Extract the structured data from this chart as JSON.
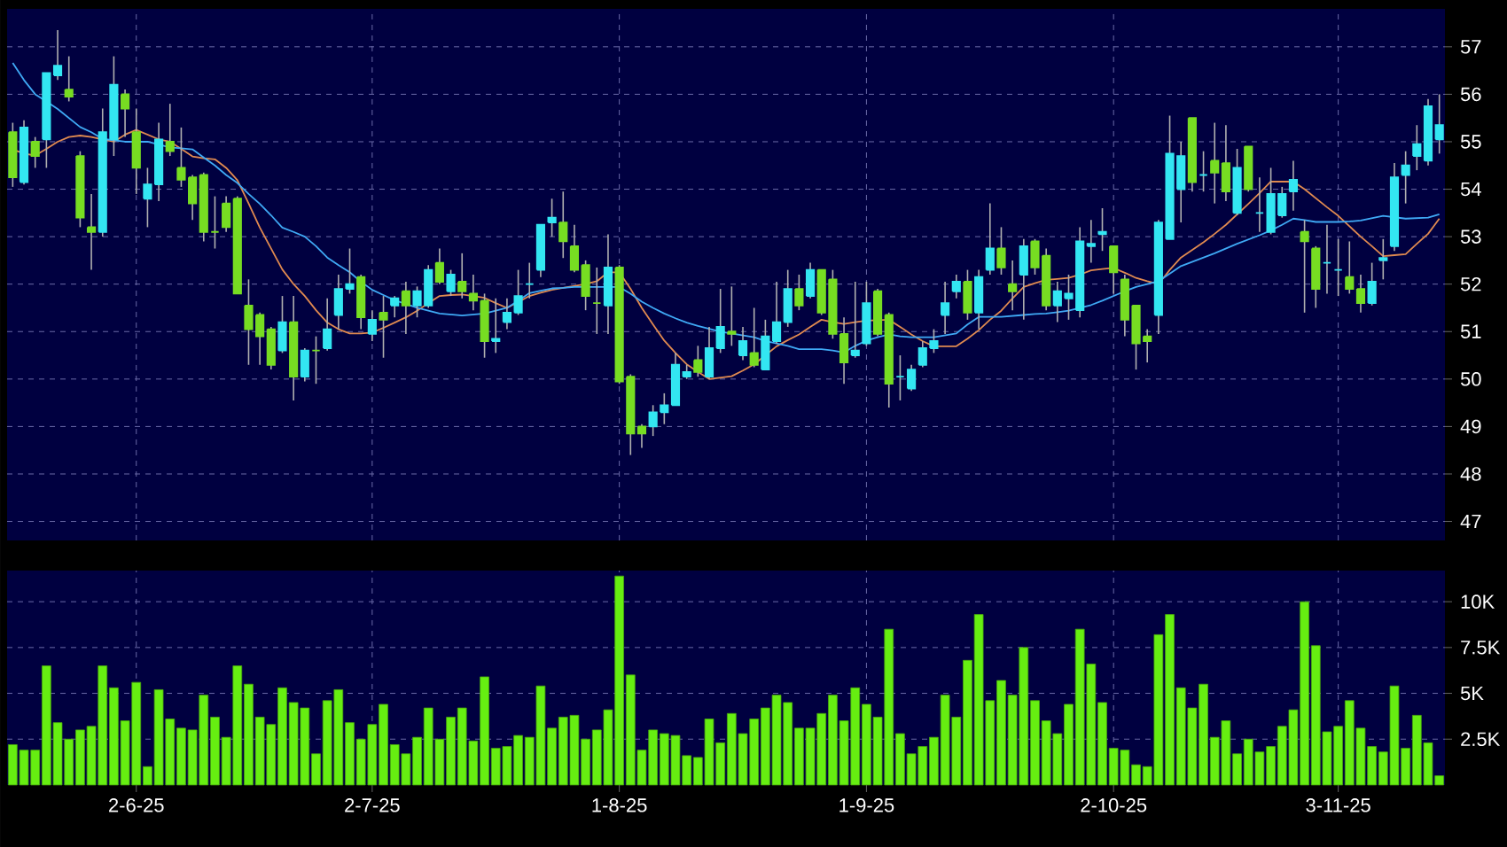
{
  "chart_data": [
    {
      "type": "candlestick",
      "categories": [
        null,
        null,
        null,
        null,
        null,
        null,
        null,
        null,
        null,
        null,
        null,
        null,
        null,
        null,
        null,
        null,
        null,
        null,
        null,
        null,
        null,
        null,
        null,
        null,
        null,
        null,
        null,
        null,
        null,
        null,
        null,
        null,
        null,
        null,
        null,
        null,
        null,
        null,
        null,
        null,
        null,
        null,
        null,
        null,
        null,
        null,
        null,
        null,
        null,
        null,
        null,
        null,
        null,
        null,
        null,
        null,
        null,
        null,
        null,
        null,
        null,
        null,
        null,
        null,
        null,
        null,
        null,
        null,
        null,
        null,
        null,
        null,
        null,
        null,
        null,
        null,
        null,
        null,
        null,
        null,
        null,
        null,
        null,
        null,
        null,
        null,
        null,
        null,
        null,
        null,
        null,
        null,
        null,
        null,
        null,
        null,
        null,
        null,
        null,
        null,
        null,
        null,
        null,
        null,
        null,
        null,
        null,
        null,
        null,
        null,
        null,
        null,
        null,
        null,
        null,
        null,
        null,
        null,
        null,
        null,
        null,
        null,
        null,
        null,
        null,
        null,
        null,
        null
      ],
      "ohlc": [
        [
          55.2,
          55.4,
          54.05,
          54.25
        ],
        [
          54.15,
          55.45,
          54.1,
          55.3
        ],
        [
          55.0,
          55.1,
          54.45,
          54.7
        ],
        [
          55.05,
          56.45,
          54.45,
          56.45
        ],
        [
          56.4,
          57.35,
          56.3,
          56.6
        ],
        [
          56.1,
          56.8,
          55.85,
          55.95
        ],
        [
          54.7,
          54.8,
          53.2,
          53.4
        ],
        [
          53.2,
          53.9,
          52.3,
          53.1
        ],
        [
          53.1,
          55.7,
          53.0,
          55.2
        ],
        [
          55.05,
          56.8,
          54.7,
          56.2
        ],
        [
          56.0,
          56.1,
          55.1,
          55.7
        ],
        [
          55.2,
          55.7,
          53.9,
          54.45
        ],
        [
          53.8,
          54.45,
          53.2,
          54.1
        ],
        [
          54.1,
          55.4,
          53.75,
          55.05
        ],
        [
          55.0,
          55.8,
          54.7,
          54.8
        ],
        [
          54.45,
          55.3,
          54.05,
          54.2
        ],
        [
          54.25,
          54.3,
          53.35,
          53.7
        ],
        [
          54.3,
          54.35,
          52.9,
          53.1
        ],
        [
          53.1,
          53.85,
          52.75,
          53.1
        ],
        [
          53.7,
          53.85,
          53.1,
          53.2
        ],
        [
          53.8,
          53.85,
          51.8,
          51.8
        ],
        [
          51.55,
          52.1,
          50.3,
          51.05
        ],
        [
          51.35,
          51.4,
          50.3,
          50.9
        ],
        [
          51.05,
          51.1,
          50.2,
          50.3
        ],
        [
          50.6,
          51.75,
          50.55,
          51.2
        ],
        [
          51.2,
          51.75,
          49.55,
          50.05
        ],
        [
          50.05,
          50.65,
          49.95,
          50.6
        ],
        [
          50.6,
          50.9,
          49.9,
          50.6
        ],
        [
          50.65,
          51.7,
          50.6,
          51.05
        ],
        [
          51.35,
          52.2,
          51.05,
          51.9
        ],
        [
          51.9,
          52.75,
          51.8,
          52.0
        ],
        [
          52.15,
          52.2,
          51.05,
          51.3
        ],
        [
          50.95,
          51.45,
          50.8,
          51.25
        ],
        [
          51.4,
          51.75,
          50.45,
          51.25
        ],
        [
          51.55,
          51.75,
          51.3,
          51.7
        ],
        [
          51.85,
          52.05,
          50.95,
          51.55
        ],
        [
          51.55,
          51.95,
          51.3,
          51.85
        ],
        [
          51.55,
          52.4,
          51.5,
          52.3
        ],
        [
          52.45,
          52.75,
          52.0,
          52.05
        ],
        [
          51.85,
          52.3,
          51.75,
          52.2
        ],
        [
          52.05,
          52.65,
          51.7,
          51.85
        ],
        [
          51.8,
          52.2,
          51.45,
          51.65
        ],
        [
          51.65,
          51.8,
          50.45,
          50.8
        ],
        [
          50.8,
          51.7,
          50.55,
          50.85
        ],
        [
          51.2,
          51.7,
          51.05,
          51.4
        ],
        [
          51.4,
          52.3,
          51.35,
          51.75
        ],
        [
          52.0,
          52.45,
          51.7,
          52.0
        ],
        [
          52.3,
          53.25,
          52.15,
          53.25
        ],
        [
          53.3,
          53.8,
          53.0,
          53.4
        ],
        [
          53.3,
          53.95,
          52.55,
          52.9
        ],
        [
          52.8,
          53.25,
          52.25,
          52.3
        ],
        [
          52.4,
          52.5,
          51.45,
          51.75
        ],
        [
          51.6,
          52.35,
          50.95,
          51.6
        ],
        [
          51.55,
          53.05,
          50.95,
          52.35
        ],
        [
          52.35,
          52.4,
          49.9,
          49.95
        ],
        [
          50.05,
          50.1,
          48.4,
          48.85
        ],
        [
          49.0,
          49.05,
          48.55,
          48.85
        ],
        [
          49.0,
          49.45,
          48.8,
          49.3
        ],
        [
          49.3,
          49.7,
          49.05,
          49.45
        ],
        [
          49.45,
          50.55,
          49.45,
          50.3
        ],
        [
          50.05,
          50.3,
          50.0,
          50.15
        ],
        [
          50.4,
          50.7,
          50.05,
          50.15
        ],
        [
          50.05,
          51.1,
          50.0,
          50.65
        ],
        [
          50.65,
          51.9,
          50.55,
          51.1
        ],
        [
          51.0,
          51.95,
          50.7,
          50.95
        ],
        [
          50.5,
          51.1,
          50.4,
          50.8
        ],
        [
          50.55,
          51.5,
          50.25,
          50.3
        ],
        [
          50.2,
          51.25,
          50.2,
          50.9
        ],
        [
          50.8,
          52.05,
          50.75,
          51.2
        ],
        [
          51.2,
          52.3,
          51.1,
          51.9
        ],
        [
          51.9,
          52.2,
          51.45,
          51.55
        ],
        [
          51.75,
          52.45,
          51.7,
          52.3
        ],
        [
          52.3,
          52.3,
          51.35,
          51.4
        ],
        [
          52.1,
          52.3,
          50.85,
          50.95
        ],
        [
          50.95,
          51.3,
          49.9,
          50.35
        ],
        [
          50.5,
          52.05,
          50.45,
          50.6
        ],
        [
          50.75,
          52.05,
          50.7,
          51.6
        ],
        [
          51.85,
          51.9,
          50.9,
          50.95
        ],
        [
          51.35,
          51.4,
          49.4,
          49.9
        ],
        [
          50.05,
          50.5,
          49.55,
          50.05
        ],
        [
          49.8,
          50.3,
          49.75,
          50.2
        ],
        [
          50.3,
          50.8,
          50.25,
          50.65
        ],
        [
          50.65,
          51.05,
          50.55,
          50.8
        ],
        [
          51.35,
          52.05,
          50.95,
          51.6
        ],
        [
          51.85,
          52.2,
          51.7,
          52.05
        ],
        [
          52.05,
          52.3,
          51.25,
          51.4
        ],
        [
          51.4,
          52.3,
          51.05,
          52.15
        ],
        [
          52.3,
          53.7,
          52.2,
          52.75
        ],
        [
          52.75,
          53.2,
          52.2,
          52.35
        ],
        [
          52.0,
          52.5,
          51.45,
          51.85
        ],
        [
          52.2,
          52.95,
          51.25,
          52.8
        ],
        [
          52.9,
          52.95,
          52.2,
          52.35
        ],
        [
          52.6,
          52.75,
          51.45,
          51.55
        ],
        [
          51.55,
          52.05,
          51.2,
          51.85
        ],
        [
          51.7,
          52.2,
          51.25,
          51.8
        ],
        [
          51.45,
          53.2,
          51.3,
          52.9
        ],
        [
          52.8,
          53.35,
          52.45,
          52.85
        ],
        [
          53.05,
          53.6,
          52.7,
          53.1
        ],
        [
          52.8,
          52.8,
          51.8,
          52.25
        ],
        [
          52.1,
          52.2,
          50.9,
          51.25
        ],
        [
          51.55,
          51.55,
          50.2,
          50.75
        ],
        [
          50.9,
          51.05,
          50.35,
          50.8
        ],
        [
          51.35,
          53.35,
          50.95,
          53.3
        ],
        [
          52.95,
          55.55,
          52.95,
          54.75
        ],
        [
          54.0,
          55.0,
          53.3,
          54.7
        ],
        [
          55.5,
          55.5,
          53.95,
          54.15
        ],
        [
          54.3,
          54.8,
          53.95,
          54.3
        ],
        [
          54.6,
          55.4,
          53.7,
          54.35
        ],
        [
          54.55,
          55.35,
          53.75,
          53.95
        ],
        [
          53.5,
          54.85,
          53.45,
          54.45
        ],
        [
          54.9,
          54.9,
          53.95,
          54.0
        ],
        [
          53.5,
          54.25,
          53.1,
          53.5
        ],
        [
          53.1,
          54.45,
          53.05,
          53.9
        ],
        [
          53.45,
          54.05,
          53.4,
          53.9
        ],
        [
          53.95,
          54.6,
          53.55,
          54.2
        ],
        [
          53.1,
          53.35,
          51.4,
          52.9
        ],
        [
          52.75,
          52.8,
          51.5,
          51.9
        ],
        [
          52.45,
          53.25,
          51.8,
          52.45
        ],
        [
          52.3,
          52.95,
          51.75,
          52.3
        ],
        [
          52.15,
          52.9,
          51.8,
          51.9
        ],
        [
          51.9,
          52.2,
          51.4,
          51.6
        ],
        [
          51.6,
          52.45,
          51.55,
          52.05
        ],
        [
          52.5,
          52.95,
          52.1,
          52.55
        ],
        [
          52.8,
          54.55,
          52.7,
          54.25
        ],
        [
          54.3,
          54.8,
          53.7,
          54.5
        ],
        [
          54.7,
          55.35,
          54.4,
          54.95
        ],
        [
          54.6,
          55.9,
          54.5,
          55.75
        ],
        [
          55.05,
          56.0,
          54.75,
          55.35
        ]
      ],
      "colors": [
        "#77dd22",
        "#33e6f2",
        "#77dd22",
        "#33e6f2",
        "#33e6f2",
        "#77dd22",
        "#77dd22",
        "#77dd22",
        "#33e6f2",
        "#33e6f2",
        "#77dd22",
        "#77dd22",
        "#33e6f2",
        "#33e6f2",
        "#77dd22",
        "#77dd22",
        "#77dd22",
        "#77dd22",
        "#77dd22",
        "#77dd22",
        "#77dd22",
        "#77dd22",
        "#77dd22",
        "#77dd22",
        "#33e6f2",
        "#77dd22",
        "#33e6f2",
        "#77dd22",
        "#33e6f2",
        "#33e6f2",
        "#33e6f2",
        "#77dd22",
        "#33e6f2",
        "#77dd22",
        "#33e6f2",
        "#77dd22",
        "#33e6f2",
        "#33e6f2",
        "#77dd22",
        "#33e6f2",
        "#77dd22",
        "#77dd22",
        "#77dd22",
        "#33e6f2",
        "#33e6f2",
        "#33e6f2",
        "#33e6f2",
        "#33e6f2",
        "#33e6f2",
        "#77dd22",
        "#77dd22",
        "#77dd22",
        "#77dd22",
        "#33e6f2",
        "#77dd22",
        "#77dd22",
        "#77dd22",
        "#33e6f2",
        "#33e6f2",
        "#33e6f2",
        "#33e6f2",
        "#77dd22",
        "#33e6f2",
        "#33e6f2",
        "#77dd22",
        "#33e6f2",
        "#77dd22",
        "#33e6f2",
        "#33e6f2",
        "#33e6f2",
        "#77dd22",
        "#33e6f2",
        "#77dd22",
        "#77dd22",
        "#77dd22",
        "#33e6f2",
        "#33e6f2",
        "#77dd22",
        "#77dd22",
        "#33e6f2",
        "#33e6f2",
        "#33e6f2",
        "#33e6f2",
        "#33e6f2",
        "#33e6f2",
        "#77dd22",
        "#33e6f2",
        "#33e6f2",
        "#77dd22",
        "#77dd22",
        "#33e6f2",
        "#77dd22",
        "#77dd22",
        "#33e6f2",
        "#33e6f2",
        "#33e6f2",
        "#33e6f2",
        "#33e6f2",
        "#77dd22",
        "#77dd22",
        "#77dd22",
        "#77dd22",
        "#33e6f2",
        "#33e6f2",
        "#33e6f2",
        "#77dd22",
        "#33e6f2",
        "#77dd22",
        "#77dd22",
        "#33e6f2",
        "#77dd22",
        "#33e6f2",
        "#33e6f2",
        "#33e6f2",
        "#33e6f2",
        "#77dd22",
        "#77dd22",
        "#33e6f2",
        "#33e6f2",
        "#77dd22",
        "#77dd22",
        "#33e6f2",
        "#33e6f2",
        "#33e6f2",
        "#33e6f2",
        "#33e6f2",
        "#33e6f2",
        "#33e6f2"
      ],
      "series": [
        {
          "type": "line",
          "color": "#e08a50",
          "values": [
            54.84,
            54.75,
            54.71,
            54.85,
            55.0,
            55.1,
            55.13,
            55.1,
            55.05,
            55.0,
            55.15,
            55.25,
            55.15,
            55.05,
            55.0,
            54.85,
            54.69,
            54.65,
            54.63,
            54.45,
            54.19,
            53.7,
            53.19,
            52.75,
            52.31,
            52.0,
            51.75,
            51.45,
            51.19,
            51.05,
            50.96,
            50.96,
            50.98,
            51.08,
            51.19,
            51.3,
            51.44,
            51.6,
            51.75,
            51.77,
            51.78,
            51.75,
            51.71,
            51.6,
            51.5,
            51.62,
            51.75,
            51.82,
            51.88,
            51.92,
            51.96,
            52.0,
            52.06,
            52.25,
            52.25,
            51.9,
            51.5,
            51.15,
            50.81,
            50.55,
            50.31,
            50.15,
            50.0,
            50.03,
            50.06,
            50.18,
            50.31,
            50.5,
            50.69,
            50.82,
            50.94,
            51.1,
            51.25,
            51.2,
            51.16,
            51.2,
            51.23,
            51.24,
            51.25,
            51.1,
            50.94,
            50.8,
            50.69,
            50.69,
            50.69,
            50.85,
            51.03,
            51.25,
            51.44,
            51.7,
            51.94,
            52.02,
            52.09,
            52.11,
            52.13,
            52.2,
            52.29,
            52.32,
            52.34,
            52.24,
            52.13,
            52.06,
            52.0,
            52.3,
            52.56,
            52.72,
            52.88,
            53.06,
            53.25,
            53.47,
            53.69,
            53.92,
            54.16,
            54.16,
            54.16,
            54.0,
            53.81,
            53.62,
            53.44,
            53.22,
            53.0,
            52.8,
            52.59,
            52.61,
            52.63,
            52.85,
            53.06,
            53.38
          ]
        },
        {
          "type": "line",
          "color": "#3fa9f5",
          "values": [
            56.66,
            56.3,
            56.0,
            55.85,
            55.69,
            55.5,
            55.31,
            55.2,
            55.06,
            55.03,
            55.0,
            55.0,
            55.0,
            54.94,
            54.88,
            54.86,
            54.84,
            54.67,
            54.5,
            54.3,
            54.13,
            53.9,
            53.69,
            53.45,
            53.19,
            53.1,
            53.0,
            52.8,
            52.56,
            52.4,
            52.25,
            52.05,
            51.88,
            51.77,
            51.66,
            51.58,
            51.5,
            51.44,
            51.38,
            51.36,
            51.34,
            51.36,
            51.38,
            51.44,
            51.5,
            51.65,
            51.81,
            51.86,
            51.91,
            51.92,
            51.94,
            51.94,
            51.94,
            51.94,
            51.94,
            51.8,
            51.63,
            51.5,
            51.38,
            51.28,
            51.19,
            51.12,
            51.06,
            51.0,
            50.96,
            50.92,
            50.88,
            50.8,
            50.75,
            50.7,
            50.63,
            50.63,
            50.63,
            50.6,
            50.56,
            50.7,
            50.81,
            50.88,
            50.94,
            50.9,
            50.88,
            50.88,
            50.88,
            50.92,
            50.96,
            51.15,
            51.31,
            51.31,
            51.31,
            51.33,
            51.35,
            51.37,
            51.38,
            51.41,
            51.44,
            51.5,
            51.56,
            51.65,
            51.75,
            51.85,
            51.94,
            52.0,
            52.06,
            52.22,
            52.38,
            52.47,
            52.56,
            52.65,
            52.75,
            52.85,
            52.94,
            53.03,
            53.13,
            53.25,
            53.38,
            53.35,
            53.31,
            53.31,
            53.31,
            53.32,
            53.34,
            53.39,
            53.44,
            53.41,
            53.38,
            53.39,
            53.4,
            53.47
          ]
        }
      ],
      "ylim": [
        46.6,
        57.8
      ],
      "yticks": [
        47,
        48,
        49,
        50,
        51,
        52,
        53,
        54,
        55,
        56,
        57
      ],
      "grid": true,
      "tick_labels": "y"
    },
    {
      "type": "bar",
      "categories": [
        null,
        null,
        null,
        null,
        null,
        null,
        null,
        null,
        null,
        null,
        null,
        "2-6-25",
        null,
        null,
        null,
        null,
        null,
        null,
        null,
        null,
        null,
        null,
        null,
        null,
        null,
        null,
        null,
        null,
        null,
        null,
        null,
        null,
        "2-7-25",
        null,
        null,
        null,
        null,
        null,
        null,
        null,
        null,
        null,
        null,
        null,
        null,
        null,
        null,
        null,
        null,
        null,
        null,
        null,
        null,
        null,
        "1-8-25",
        null,
        null,
        null,
        null,
        null,
        null,
        null,
        null,
        null,
        null,
        null,
        null,
        null,
        null,
        null,
        null,
        null,
        null,
        null,
        null,
        null,
        "1-9-25",
        null,
        null,
        null,
        null,
        null,
        null,
        null,
        null,
        null,
        null,
        null,
        null,
        null,
        null,
        null,
        null,
        null,
        null,
        null,
        null,
        null,
        "2-10-25",
        null,
        null,
        null,
        null,
        null,
        null,
        null,
        null,
        null,
        null,
        null,
        null,
        null,
        null,
        null,
        null,
        null,
        null,
        null,
        "3-11-25",
        null,
        null,
        null,
        null,
        null,
        null,
        null,
        null,
        null
      ],
      "values": [
        2200,
        1900,
        1900,
        6500,
        3400,
        2500,
        3000,
        3200,
        6500,
        5300,
        3500,
        5600,
        1000,
        5200,
        3600,
        3100,
        3000,
        4900,
        3700,
        2600,
        6500,
        5500,
        3700,
        3300,
        5300,
        4500,
        4200,
        1700,
        4600,
        5200,
        3400,
        2500,
        3300,
        4400,
        2200,
        1700,
        2600,
        4200,
        2500,
        3700,
        4200,
        2400,
        5900,
        2000,
        2100,
        2700,
        2600,
        5400,
        3100,
        3700,
        3800,
        2500,
        3000,
        4100,
        11400,
        6000,
        1900,
        3000,
        2800,
        2700,
        1600,
        1500,
        3600,
        2300,
        3900,
        2800,
        3600,
        4200,
        4900,
        4500,
        3100,
        3100,
        3900,
        4900,
        3500,
        5300,
        4400,
        3700,
        8500,
        2800,
        1700,
        2100,
        2600,
        4900,
        3700,
        6800,
        9300,
        4600,
        5700,
        4900,
        7500,
        4600,
        3500,
        2800,
        4400,
        8500,
        6600,
        4500,
        2000,
        1900,
        1100,
        1000,
        8200,
        9300,
        5300,
        4200,
        5500,
        2600,
        3500,
        1700,
        2500,
        1800,
        2100,
        3200,
        4100,
        10000,
        7600,
        2900,
        3200,
        4600,
        3100,
        2100,
        1800,
        5400,
        2000,
        3800,
        2300,
        500
      ],
      "color": "#66ee11",
      "ylim": [
        0,
        11700
      ],
      "yticks": [
        {
          "value": 2500,
          "label": "2.5K"
        },
        {
          "value": 5000,
          "label": "5K"
        },
        {
          "value": 7500,
          "label": "7.5K"
        },
        {
          "value": 10000,
          "label": "10K"
        }
      ],
      "grid": true
    }
  ]
}
